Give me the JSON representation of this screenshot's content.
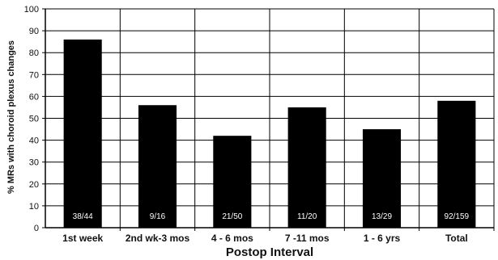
{
  "chart_data": {
    "type": "bar",
    "xlabel": "Postop Interval",
    "ylabel": "% MRs with choroid plexus changes",
    "ylim": [
      0,
      100
    ],
    "yticks": [
      0,
      10,
      20,
      30,
      40,
      50,
      60,
      70,
      80,
      90,
      100
    ],
    "grid": true,
    "categories": [
      "1st week",
      "2nd wk-3 mos",
      "4 - 6 mos",
      "7 -11 mos",
      "1 - 6 yrs",
      "Total"
    ],
    "values": [
      86,
      56,
      42,
      55,
      45,
      58
    ],
    "data_labels": [
      "38/44",
      "9/16",
      "21/50",
      "11/20",
      "13/29",
      "92/159"
    ],
    "bar_color": "#000000",
    "grid_color": "#000000"
  }
}
